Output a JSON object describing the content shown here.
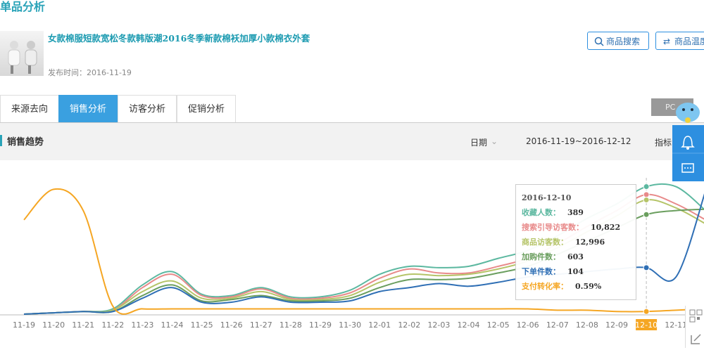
{
  "page_title": "单品分析",
  "product": {
    "title": "女款棉服短款宽松冬款韩版潮2016冬季新款棉袄加厚小款棉衣外套",
    "publish": "发布时间：2016-11-19"
  },
  "buttons": [
    "商品搜索",
    "商品温度"
  ],
  "tabs": [
    "来源去向",
    "销售分析",
    "访客分析",
    "促销分析"
  ],
  "device": "PC",
  "panel": {
    "title": "销售趋势",
    "date_label": "日期",
    "date_range": "2016-11-19~2016-12-12",
    "metric_label": "指标"
  },
  "chart_data": {
    "type": "line",
    "categories": [
      "11-19",
      "11-20",
      "11-21",
      "11-22",
      "11-23",
      "11-24",
      "11-25",
      "11-26",
      "11-27",
      "11-28",
      "11-29",
      "11-30",
      "12-01",
      "12-02",
      "12-03",
      "12-04",
      "12-05",
      "12-06",
      "12-07",
      "12-08",
      "12-09",
      "12-10",
      "12-11",
      null
    ],
    "ylim": [
      0,
      100
    ],
    "highlight": 21,
    "series": [
      {
        "color": "#5cb8a0",
        "values": [
          0,
          1,
          2,
          4,
          22,
          32,
          15,
          14,
          20,
          13,
          13,
          18,
          30,
          36,
          35,
          36,
          42,
          48,
          59,
          72,
          83,
          96,
          96,
          78
        ]
      },
      {
        "color": "#e88a8a",
        "values": [
          0,
          1,
          2,
          3,
          20,
          30,
          14,
          13,
          19,
          12,
          12,
          16,
          27,
          34,
          31,
          31,
          36,
          42,
          53,
          66,
          78,
          90,
          83,
          71
        ]
      },
      {
        "color": "#b5c468",
        "values": [
          0,
          1,
          2,
          3,
          17,
          25,
          12,
          12,
          17,
          11,
          11,
          14,
          24,
          30,
          29,
          30,
          34,
          40,
          50,
          62,
          74,
          86,
          80,
          68
        ]
      },
      {
        "color": "#6a9e5e",
        "values": [
          0,
          1,
          2,
          2,
          14,
          22,
          10,
          11,
          14,
          10,
          10,
          12,
          20,
          26,
          26,
          27,
          31,
          36,
          45,
          55,
          65,
          75,
          78,
          79
        ]
      },
      {
        "color": "#2f6fb5",
        "values": [
          0,
          1,
          2,
          2,
          12,
          20,
          9,
          9,
          13,
          9,
          9,
          10,
          17,
          20,
          23,
          21,
          24,
          28,
          30,
          32,
          34,
          35,
          28,
          93
        ]
      },
      {
        "color": "#f5a623",
        "values": [
          71,
          94,
          78,
          6,
          4,
          4,
          4,
          4,
          4,
          4,
          4,
          4,
          4,
          4,
          4,
          4,
          4,
          4,
          3,
          3,
          2,
          2,
          3,
          4
        ]
      }
    ]
  },
  "tooltip": {
    "date": "2016-12-10",
    "rows": [
      {
        "label": "收藏人数：",
        "value": "389"
      },
      {
        "label": "搜索引导访客数：",
        "value": "10,822"
      },
      {
        "label": "商品访客数：",
        "value": "12,996"
      },
      {
        "label": "加购件数：",
        "value": "603"
      },
      {
        "label": "下单件数：",
        "value": "104"
      },
      {
        "label": "支付转化率：",
        "value": "0.59%"
      }
    ]
  }
}
